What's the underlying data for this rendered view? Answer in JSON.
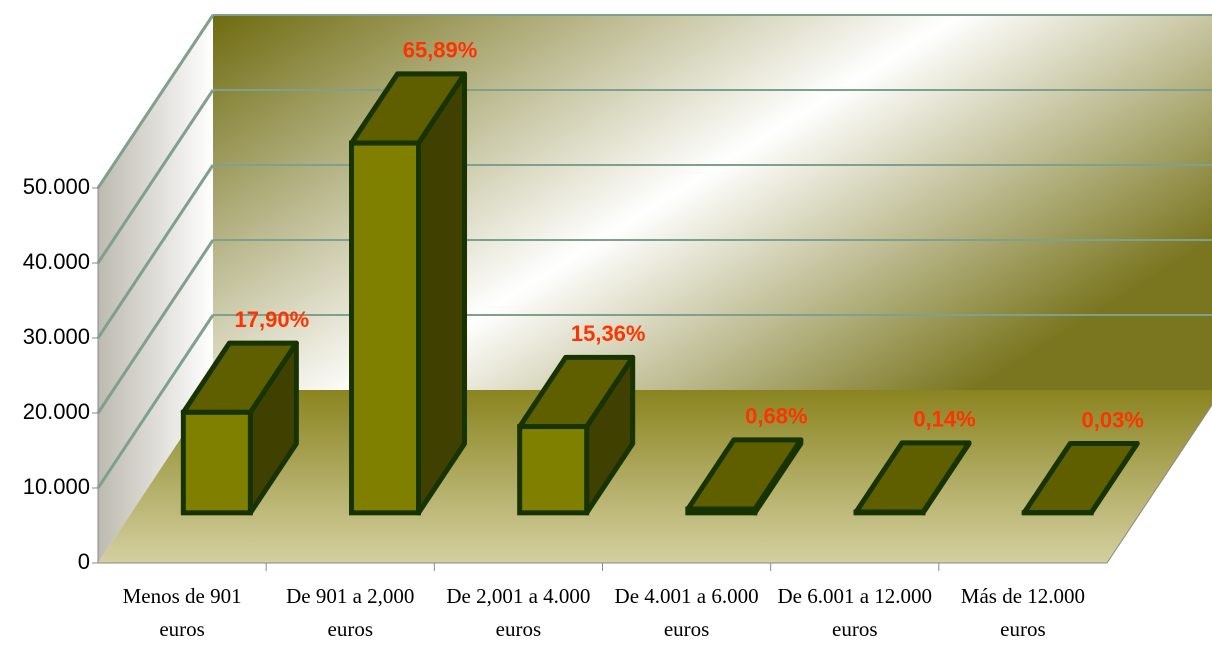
{
  "chart_data": {
    "type": "bar3d",
    "categories": [
      "Menos de 901 euros",
      "De 901 a 2,000 euros",
      "De 2,001 a 4.000 euros",
      "De 4.001 a 6.000 euros",
      "De 6.001 a 12.000 euros",
      "Más de 12.000 euros"
    ],
    "values": [
      13400,
      49300,
      11500,
      500,
      100,
      20
    ],
    "data_labels": [
      {
        "value": 17.9,
        "label": "17,90%"
      },
      {
        "value": 65.89,
        "label": "65,89%"
      },
      {
        "value": 15.36,
        "label": "15,36%"
      },
      {
        "value": 0.68,
        "label": "0,68%"
      },
      {
        "value": 0.14,
        "label": "0,14%"
      },
      {
        "value": 0.03,
        "label": "0,03%"
      }
    ],
    "color": "#808000",
    "label_color": "#ff3300",
    "ylim": [
      0,
      50000
    ],
    "yticks": [
      0,
      {
        "value": 10000,
        "label": "10.000"
      },
      {
        "value": 20000,
        "label": "20.000"
      },
      {
        "value": 30000,
        "label": "30.000"
      },
      {
        "value": 40000,
        "label": "40.000"
      },
      {
        "value": 50000,
        "label": "50.000"
      }
    ],
    "grid": true
  }
}
